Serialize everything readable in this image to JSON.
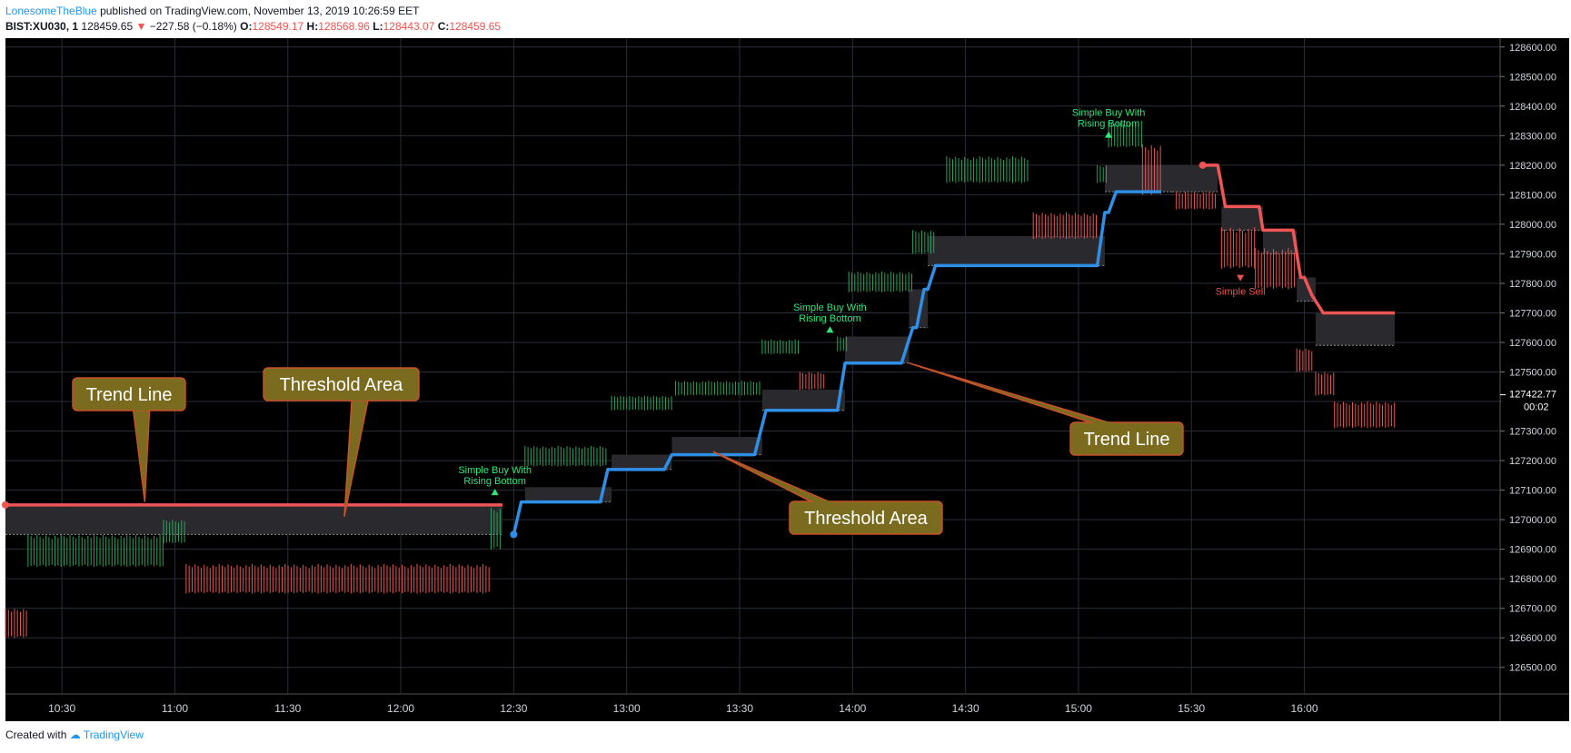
{
  "header": {
    "author": "LonesomeTheBlue",
    "published_text": "published on TradingView.com, November 13, 2019 10:26:59 EET",
    "symbol": "BIST:XU030, 1",
    "price": "128459.65",
    "change_arrow": "▼",
    "change": "−227.58 (−0.18%)",
    "o_label": "O:",
    "o_value": "128549.17",
    "h_label": "H:",
    "h_value": "128568.96",
    "l_label": "L:",
    "l_value": "128443.07",
    "c_label": "C:",
    "c_value": "128459.65"
  },
  "footer": {
    "created_with": "Created with",
    "brand": "TradingView"
  },
  "colors": {
    "background": "#000000",
    "up": "#26a65b",
    "down": "#ef5350",
    "trend_up": "#2f8ee5",
    "trend_down": "#f05555",
    "threshold": "#2a2a2e",
    "annotation_bg": "#7a6b1e",
    "annotation_border": "#c6512a"
  },
  "chart_data": {
    "type": "line",
    "title": "",
    "xlabel": "",
    "ylabel": "",
    "xlim": [
      "10:15",
      "16:52"
    ],
    "ylim": [
      126410,
      128630
    ],
    "grid": true,
    "x_ticks": [
      "10:30",
      "11:00",
      "11:30",
      "12:00",
      "12:30",
      "13:00",
      "13:30",
      "14:00",
      "14:30",
      "15:00",
      "15:30",
      "16:00"
    ],
    "y_ticks": [
      "126500.00",
      "126600.00",
      "126700.00",
      "126800.00",
      "126900.00",
      "127000.00",
      "127100.00",
      "127200.00",
      "127300.00",
      "127400.00",
      "127500.00",
      "127600.00",
      "127700.00",
      "127800.00",
      "127900.00",
      "128000.00",
      "128100.00",
      "128200.00",
      "128300.00",
      "128400.00",
      "128500.00",
      "128600.00"
    ],
    "last_price_label": "127422.77",
    "countdown_label": "00:02",
    "series": [
      {
        "name": "",
        "role": "trend_line",
        "color": "#f05555",
        "x": [
          "10:15",
          "12:27"
        ],
        "y": [
          127050,
          127050
        ]
      },
      {
        "name": "",
        "role": "trend_line",
        "color": "#2f8ee5",
        "x": [
          "12:30",
          "12:32",
          "12:53",
          "12:55",
          "13:10",
          "13:12",
          "13:34",
          "13:37",
          "13:56",
          "13:58",
          "14:13",
          "14:16",
          "14:17",
          "14:19",
          "14:20",
          "14:22",
          "15:05",
          "15:07",
          "15:08",
          "15:10",
          "15:22"
        ],
        "y": [
          126950,
          127060,
          127060,
          127170,
          127170,
          127220,
          127220,
          127370,
          127370,
          127530,
          127530,
          127650,
          127650,
          127780,
          127780,
          127860,
          127860,
          128040,
          128040,
          128110,
          128110
        ]
      },
      {
        "name": "",
        "role": "trend_line",
        "color": "#f05555",
        "x": [
          "15:33",
          "15:37",
          "15:39",
          "15:48",
          "15:49",
          "15:57",
          "15:59",
          "16:00",
          "16:02",
          "16:05",
          "16:24"
        ],
        "y": [
          128200,
          128200,
          128060,
          128060,
          127980,
          127980,
          127820,
          127820,
          127760,
          127700,
          127700
        ]
      },
      {
        "name": "",
        "role": "threshold_area",
        "segments": [
          {
            "x": [
              "10:15",
              "12:27"
            ],
            "top": 127050,
            "bottom": 126950
          },
          {
            "x": [
              "12:33",
              "12:56"
            ],
            "top": 127110,
            "bottom": 127060
          },
          {
            "x": [
              "12:56",
              "13:12"
            ],
            "top": 127220,
            "bottom": 127170
          },
          {
            "x": [
              "13:12",
              "13:36"
            ],
            "top": 127280,
            "bottom": 127220
          },
          {
            "x": [
              "13:36",
              "13:58"
            ],
            "top": 127440,
            "bottom": 127370
          },
          {
            "x": [
              "13:58",
              "14:15"
            ],
            "top": 127620,
            "bottom": 127530
          },
          {
            "x": [
              "14:15",
              "14:20"
            ],
            "top": 127780,
            "bottom": 127650
          },
          {
            "x": [
              "14:20",
              "15:07"
            ],
            "top": 127960,
            "bottom": 127860
          },
          {
            "x": [
              "15:07",
              "15:25"
            ],
            "top": 128200,
            "bottom": 128110
          },
          {
            "x": [
              "15:25",
              "15:37"
            ],
            "top": 128200,
            "bottom": 128110
          },
          {
            "x": [
              "15:38",
              "15:49"
            ],
            "top": 128060,
            "bottom": 127980
          },
          {
            "x": [
              "15:49",
              "15:58"
            ],
            "top": 127980,
            "bottom": 127900
          },
          {
            "x": [
              "15:58",
              "16:03"
            ],
            "top": 127820,
            "bottom": 127740
          },
          {
            "x": [
              "16:03",
              "16:24"
            ],
            "top": 127700,
            "bottom": 127590
          }
        ]
      },
      {
        "name": "",
        "role": "bars",
        "segments": [
          {
            "x": [
              "10:15",
              "10:21"
            ],
            "low": 126600,
            "high": 126700,
            "dir": "down"
          },
          {
            "x": [
              "10:21",
              "10:57"
            ],
            "low": 126840,
            "high": 126950,
            "dir": "up"
          },
          {
            "x": [
              "10:57",
              "11:03"
            ],
            "low": 126920,
            "high": 127000,
            "dir": "up"
          },
          {
            "x": [
              "11:03",
              "12:24"
            ],
            "low": 126750,
            "high": 126850,
            "dir": "down"
          },
          {
            "x": [
              "12:24",
              "12:27"
            ],
            "low": 126900,
            "high": 127040,
            "dir": "up"
          },
          {
            "x": [
              "12:33",
              "12:55"
            ],
            "low": 127180,
            "high": 127250,
            "dir": "up"
          },
          {
            "x": [
              "12:56",
              "13:12"
            ],
            "low": 127370,
            "high": 127420,
            "dir": "up"
          },
          {
            "x": [
              "13:13",
              "13:36"
            ],
            "low": 127420,
            "high": 127470,
            "dir": "up"
          },
          {
            "x": [
              "13:36",
              "13:46"
            ],
            "low": 127560,
            "high": 127610,
            "dir": "up"
          },
          {
            "x": [
              "13:46",
              "13:53"
            ],
            "low": 127440,
            "high": 127500,
            "dir": "down"
          },
          {
            "x": [
              "13:56",
              "13:59"
            ],
            "low": 127570,
            "high": 127620,
            "dir": "up"
          },
          {
            "x": [
              "13:59",
              "14:16"
            ],
            "low": 127770,
            "high": 127840,
            "dir": "up"
          },
          {
            "x": [
              "14:16",
              "14:22"
            ],
            "low": 127900,
            "high": 127980,
            "dir": "up"
          },
          {
            "x": [
              "14:25",
              "14:47"
            ],
            "low": 128140,
            "high": 128230,
            "dir": "up"
          },
          {
            "x": [
              "14:48",
              "15:05"
            ],
            "low": 127950,
            "high": 128040,
            "dir": "down"
          },
          {
            "x": [
              "15:05",
              "15:08"
            ],
            "low": 128140,
            "high": 128200,
            "dir": "up"
          },
          {
            "x": [
              "15:08",
              "15:17"
            ],
            "low": 128260,
            "high": 128350,
            "dir": "up"
          },
          {
            "x": [
              "15:17",
              "15:22"
            ],
            "low": 128100,
            "high": 128270,
            "dir": "down"
          },
          {
            "x": [
              "15:26",
              "15:37"
            ],
            "low": 128050,
            "high": 128110,
            "dir": "down"
          },
          {
            "x": [
              "15:38",
              "15:47"
            ],
            "low": 127850,
            "high": 127990,
            "dir": "down"
          },
          {
            "x": [
              "15:47",
              "15:58"
            ],
            "low": 127780,
            "high": 127920,
            "dir": "down"
          },
          {
            "x": [
              "15:58",
              "16:02"
            ],
            "low": 127500,
            "high": 127580,
            "dir": "down"
          },
          {
            "x": [
              "16:03",
              "16:08"
            ],
            "low": 127420,
            "high": 127500,
            "dir": "down"
          },
          {
            "x": [
              "16:08",
              "16:24"
            ],
            "low": 127310,
            "high": 127400,
            "dir": "down"
          }
        ]
      }
    ],
    "signals": [
      {
        "type": "buy",
        "x": "12:25",
        "y": 127120,
        "label_line1": "Simple Buy With",
        "label_line2": "Rising Bottom"
      },
      {
        "type": "buy",
        "x": "13:54",
        "y": 127670,
        "label_line1": "Simple Buy With",
        "label_line2": "Rising Bottom"
      },
      {
        "type": "buy",
        "x": "15:08",
        "y": 128330,
        "label_line1": "Simple Buy With",
        "label_line2": "Rising Bottom"
      },
      {
        "type": "sell",
        "x": "15:43",
        "y": 127810,
        "label_line1": "Simple Sell",
        "label_line2": ""
      }
    ],
    "annotations": [
      {
        "text": "Trend Line",
        "target_x": "10:52",
        "target_y": 127060
      },
      {
        "text": "Threshold Area",
        "target_x": "11:45",
        "target_y": 127010
      },
      {
        "text": "Threshold Area",
        "target_x": "13:23",
        "target_y": 127230
      },
      {
        "text": "Trend Line",
        "target_x": "14:15",
        "target_y": 127530
      }
    ]
  }
}
